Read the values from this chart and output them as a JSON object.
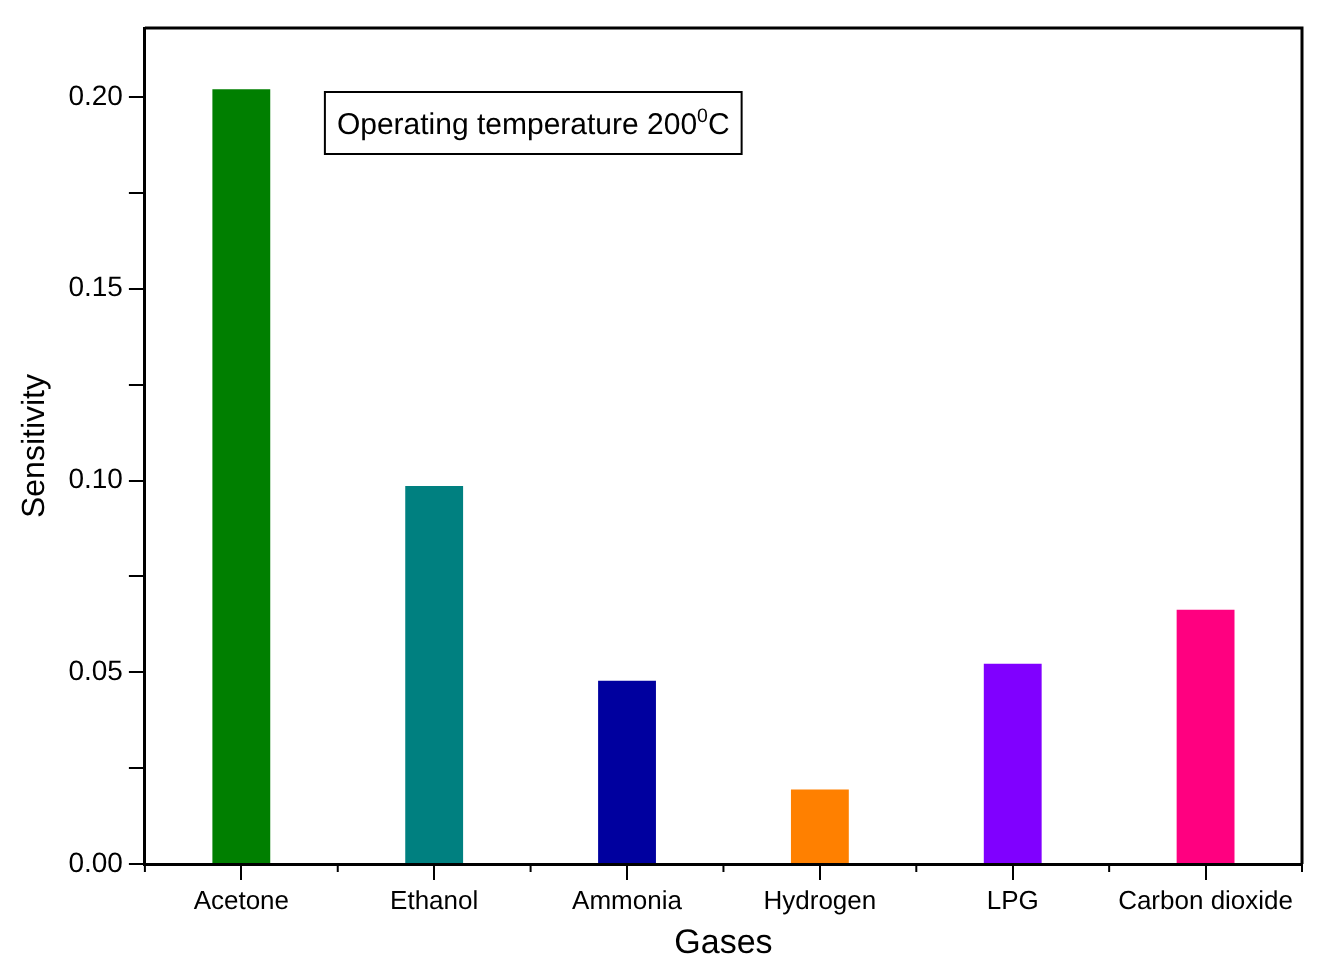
{
  "chart_data": {
    "type": "bar",
    "xlabel": "Gases",
    "ylabel": "Sensitivity",
    "categories": [
      "Acetone",
      "Ethanol",
      "Ammonia",
      "Hydrogen",
      "LPG",
      "Carbon dioxide"
    ],
    "values": [
      0.202,
      0.0986,
      0.0478,
      0.0194,
      0.0522,
      0.0663
    ],
    "colors": [
      "#007f00",
      "#008080",
      "#00009f",
      "#ff8000",
      "#8000ff",
      "#ff0080"
    ],
    "ylim": [
      0,
      0.218
    ],
    "yticks": [
      {
        "value": 0,
        "label": "0.00"
      },
      {
        "value": 0.025,
        "label": null
      },
      {
        "value": 0.05,
        "label": "0.05"
      },
      {
        "value": 0.075,
        "label": null
      },
      {
        "value": 0.1,
        "label": "0.10"
      },
      {
        "value": 0.125,
        "label": null
      },
      {
        "value": 0.15,
        "label": "0.15"
      },
      {
        "value": 0.175,
        "label": null
      },
      {
        "value": 0.2,
        "label": "0.20"
      }
    ],
    "annotations": [
      "Operating temperature 200$^{0}$C"
    ],
    "grid": false,
    "legend": false
  }
}
